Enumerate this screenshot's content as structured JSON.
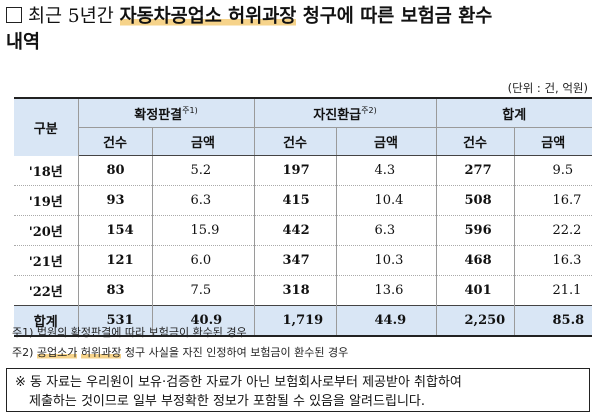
{
  "title": {
    "pre": "최근 5년간 ",
    "bold_hl": "자동차공업소 허위과장",
    "bold_rest": " 청구에 따른 보험금 환수",
    "line2": "내역"
  },
  "unit": "(단위 : 건, 억원)",
  "table": {
    "corner": "구분",
    "groups": [
      {
        "label": "확정판결",
        "sup": "주1)"
      },
      {
        "label": "자진환급",
        "sup": "주2)"
      },
      {
        "label": "합계",
        "sup": ""
      }
    ],
    "subheaders": [
      "건수",
      "금액",
      "건수",
      "금액",
      "건수",
      "금액"
    ],
    "rows": [
      {
        "year": "'18년",
        "v": [
          "80",
          "5.2",
          "197",
          "4.3",
          "277",
          "9.5"
        ]
      },
      {
        "year": "'19년",
        "v": [
          "93",
          "6.3",
          "415",
          "10.4",
          "508",
          "16.7"
        ]
      },
      {
        "year": "'20년",
        "v": [
          "154",
          "15.9",
          "442",
          "6.3",
          "596",
          "22.2"
        ]
      },
      {
        "year": "'21년",
        "v": [
          "121",
          "6.0",
          "347",
          "10.3",
          "468",
          "16.3"
        ]
      },
      {
        "year": "'22년",
        "v": [
          "83",
          "7.5",
          "318",
          "13.6",
          "401",
          "21.1"
        ]
      }
    ],
    "total": {
      "year": "합계",
      "v": [
        "531",
        "40.9",
        "1,719",
        "44.9",
        "2,250",
        "85.8"
      ]
    }
  },
  "notes": {
    "n1": "주1) 법원의 확정판결에 따라 보험금이 환수된 경우",
    "n2_pre": "주2) ",
    "n2_hl1": "공업소가",
    "n2_mid": " ",
    "n2_hl2": "허위과장",
    "n2_post": " 청구 사실을 자진 인정하여 보험금이 환수된 경우"
  },
  "disclaimer": {
    "line1": "※ 동 자료는 우리원이 보유·검증한 자료가 아닌 보험회사로부터 제공받아 취합하여",
    "line2": "제출하는 것이므로 일부 부정확한 정보가 포함될 수 있음을 알려드립니다."
  }
}
